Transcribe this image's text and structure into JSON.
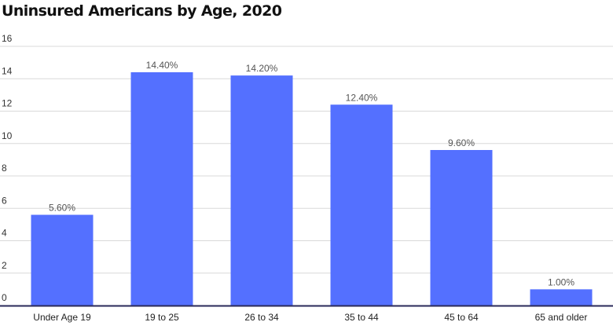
{
  "chart_data": {
    "type": "bar",
    "title": "Uninsured Americans by Age, 2020",
    "xlabel": "",
    "ylabel": "",
    "categories": [
      "Under Age 19",
      "19 to 25",
      "26 to 34",
      "35 to 44",
      "45 to 64",
      "65 and older"
    ],
    "values": [
      5.6,
      14.4,
      14.2,
      12.4,
      9.6,
      1.0
    ],
    "data_labels": [
      "5.60%",
      "14.40%",
      "14.20%",
      "12.40%",
      "9.60%",
      "1.00%"
    ],
    "y_ticks": [
      "0",
      "2",
      "4",
      "6",
      "8",
      "10",
      "12",
      "14",
      "16"
    ],
    "ylim": [
      0,
      16
    ],
    "grid": true,
    "legend": "none",
    "colors": {
      "bar": "#5470ff",
      "grid": "#d9d9d9",
      "axis": "#2a2a5a"
    }
  }
}
